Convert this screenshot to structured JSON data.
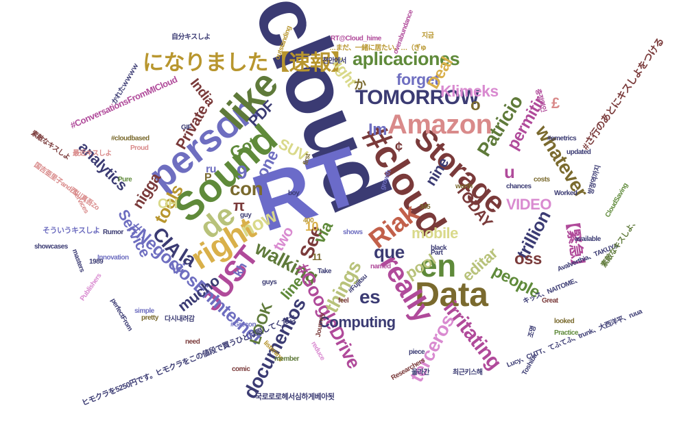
{
  "words": [
    {
      "text": "cloud",
      "color": "#3b3b73"
    },
    {
      "text": "RT",
      "color": "#6b6bc9"
    },
    {
      "text": "person",
      "color": "#6e6ec0"
    },
    {
      "text": "like",
      "color": "#5f7a3a"
    },
    {
      "text": "Sound",
      "color": "#5f8a3a"
    },
    {
      "text": "#cloud",
      "color": "#7a3a3a"
    },
    {
      "text": "Storage",
      "color": "#7a3a3a"
    },
    {
      "text": "Amazon",
      "color": "#d98a8a"
    },
    {
      "text": "TOMORROW",
      "color": "#3b3b73"
    },
    {
      "text": "になりました【速報】",
      "color": "#b8962e"
    },
    {
      "text": "aplicaciones",
      "color": "#5f8a3a"
    },
    {
      "text": "Data",
      "color": "#7a6a2e"
    },
    {
      "text": "en",
      "color": "#5f8a3a"
    },
    {
      "text": "really",
      "color": "#b04a9a"
    },
    {
      "text": "right",
      "color": "#d9b04a"
    },
    {
      "text": "de",
      "color": "#b8c27a"
    },
    {
      "text": "Riak",
      "color": "#c2604a"
    },
    {
      "text": "JUST",
      "color": "#b04a9a"
    },
    {
      "text": "walking",
      "color": "#5f7a3a"
    },
    {
      "text": "now",
      "color": "#d9d98a"
    },
    {
      "text": "irritating",
      "color": "#b04a9a"
    },
    {
      "text": "#GoogleDrive",
      "color": "#b04a9a"
    },
    {
      "text": "documentos",
      "color": "#3b3b73"
    },
    {
      "text": "terceros",
      "color": "#d98ad0"
    },
    {
      "text": "Computing",
      "color": "#3b3b73"
    },
    {
      "text": "#NegociosEnInternet",
      "color": "#6e6ec0"
    },
    {
      "text": "mobile",
      "color": "#d9d98a"
    },
    {
      "text": "VIDEO",
      "color": "#d98ad0"
    },
    {
      "text": "whatever",
      "color": "#7a6a2e"
    },
    {
      "text": "Patricio",
      "color": "#5f7a3a"
    },
    {
      "text": "Klimeks",
      "color": "#d98ad0"
    },
    {
      "text": "forget",
      "color": "#6e6ec0"
    },
    {
      "text": "Deal",
      "color": "#d9b04a"
    },
    {
      "text": "permitir",
      "color": "#b04a9a"
    },
    {
      "text": "trillion",
      "color": "#3b3b73"
    },
    {
      "text": "oss",
      "color": "#7a3a3a"
    },
    {
      "text": "【緊急】",
      "color": "#b04a9a"
    },
    {
      "text": "things",
      "color": "#b8c27a"
    },
    {
      "text": "See",
      "color": "#7a3a3a"
    },
    {
      "text": "via",
      "color": "#5f8a3a"
    },
    {
      "text": "people",
      "color": "#5f8a3a"
    },
    {
      "text": "editar",
      "color": "#b8c27a"
    },
    {
      "text": "pool",
      "color": "#b8c27a"
    },
    {
      "text": "que",
      "color": "#3b3b73"
    },
    {
      "text": "mucho",
      "color": "#3b3b73"
    },
    {
      "text": "line",
      "color": "#5f8a3a"
    },
    {
      "text": "Service",
      "color": "#6e6ec0"
    },
    {
      "text": "tools",
      "color": "#b8962e"
    },
    {
      "text": "CIA",
      "color": "#3b3b73"
    },
    {
      "text": "la",
      "color": "#3b3b73"
    },
    {
      "text": "le",
      "color": "#6e6ec0"
    },
    {
      "text": "LOOK",
      "color": "#5f7a3a"
    },
    {
      "text": "Private",
      "color": "#7a3a3a"
    },
    {
      "text": "analytics",
      "color": "#3b3b73"
    },
    {
      "text": "nigga",
      "color": "#7a3a3a"
    },
    {
      "text": "PDF",
      "color": "#3b3b73"
    },
    {
      "text": "Got",
      "color": "#5f8a3a"
    },
    {
      "text": "SUV",
      "color": "#d9d98a"
    },
    {
      "text": "con",
      "color": "#7a6a2e"
    },
    {
      "text": "one",
      "color": "#6e6ec0"
    },
    {
      "text": "two",
      "color": "#d98ad0"
    },
    {
      "text": "nine",
      "color": "#3b3b73"
    },
    {
      "text": "TODAY",
      "color": "#7a3a3a"
    },
    {
      "text": "India",
      "color": "#7a3a3a"
    },
    {
      "text": "light",
      "color": "#d9d98a"
    },
    {
      "text": "Im",
      "color": "#6e6ec0"
    },
    {
      "text": "OH",
      "color": "#d9d98a"
    },
    {
      "text": "es",
      "color": "#3b3b73"
    },
    {
      "text": "kh",
      "color": "#6e6ec0"
    },
    {
      "text": "#ConversationsFromMICloud",
      "color": "#b04a9a"
    },
    {
      "text": "#さ行のあとにキスしよをつける",
      "color": "#7a3a3a"
    },
    {
      "text": "RT@Cloud_hime",
      "color": "#b04a9a"
    },
    {
      "text": "…まだ、一緒に居たい。…（ぎゅ",
      "color": "#b8962e"
    },
    {
      "text": "ヒモクラを5250円です。ヒモクラをこの値段で買うひとは眼してくださ",
      "color": "#3b3b73"
    },
    {
      "text": "Lucy、CUTT、てふてふ、trunk、大西洋平、ruua",
      "color": "#3b3b73"
    },
    {
      "text": "Avalverthia、TAKUYA",
      "color": "#3b3b73"
    },
    {
      "text": "キッス、NAITOME、",
      "color": "#3b3b73"
    },
    {
      "text": "素敵なキスしよ、",
      "color": "#5f7a3a"
    },
    {
      "text": "국로로로헤서심하게베아됫",
      "color": "#3b3b73"
    },
    {
      "text": "そういうキスしよ",
      "color": "#6e6ec0"
    },
    {
      "text": "国吉亜里子and西川真吾Zo",
      "color": "#d98a8a"
    },
    {
      "text": "自分キスしよ",
      "color": "#3b3b73"
    },
    {
      "text": "#emetrics",
      "color": "#3b3b73"
    },
    {
      "text": "#cloudbased",
      "color": "#7a6a2e"
    },
    {
      "text": "#Fujitsu",
      "color": "#3b3b73"
    },
    {
      "text": "#Grecon",
      "color": "#6e6ec0"
    },
    {
      "text": "Toshiba",
      "color": "#3b3b73"
    },
    {
      "text": "Researchers",
      "color": "#7a3a3a"
    },
    {
      "text": "showcases",
      "color": "#3b3b73"
    },
    {
      "text": "perfectFrom",
      "color": "#3b3b73"
    },
    {
      "text": "outstanding",
      "color": "#b8962e"
    },
    {
      "text": "overabundance",
      "color": "#b04a9a"
    },
    {
      "text": "Practice",
      "color": "#5f8a3a"
    },
    {
      "text": "Innovation",
      "color": "#6e6ec0"
    },
    {
      "text": "masters",
      "color": "#3b3b73"
    },
    {
      "text": "Publishers",
      "color": "#d98ad0"
    },
    {
      "text": "comic",
      "color": "#7a3a3a"
    },
    {
      "text": "worth",
      "color": "#7a6a2e"
    },
    {
      "text": "Worked",
      "color": "#3b3b73"
    },
    {
      "text": "updated",
      "color": "#3b3b73"
    },
    {
      "text": "chances",
      "color": "#3b3b73"
    },
    {
      "text": "costs",
      "color": "#7a6a2e"
    },
    {
      "text": "available",
      "color": "#3b3b73"
    },
    {
      "text": "CloudSaving",
      "color": "#5f8a3a"
    },
    {
      "text": "Rumor",
      "color": "#3b3b73"
    },
    {
      "text": "Proud",
      "color": "#d98a8a"
    },
    {
      "text": "Pure",
      "color": "#5f8a3a"
    },
    {
      "text": "GIF",
      "color": "#3b3b73"
    },
    {
      "text": "Services",
      "color": "#d98a8a"
    },
    {
      "text": "Journey",
      "color": "#7a3a3a"
    },
    {
      "text": "listening",
      "color": "#b8962e"
    },
    {
      "text": "member",
      "color": "#5f7a3a"
    },
    {
      "text": "reduce",
      "color": "#d98ad0"
    },
    {
      "text": "piece",
      "color": "#3b3b73"
    },
    {
      "text": "looked",
      "color": "#7a6a2e"
    },
    {
      "text": "Great",
      "color": "#7a3a3a"
    },
    {
      "text": "Part",
      "color": "#3b3b73"
    },
    {
      "text": "black",
      "color": "#3b3b73"
    },
    {
      "text": "named",
      "color": "#b04a9a"
    },
    {
      "text": "shows",
      "color": "#6e6ec0"
    },
    {
      "text": "growth",
      "color": "#6e6ec0"
    },
    {
      "text": "Take",
      "color": "#3b3b73"
    },
    {
      "text": "guys",
      "color": "#3b3b73"
    },
    {
      "text": "simple",
      "color": "#6e6ec0"
    },
    {
      "text": "pretty",
      "color": "#7a6a2e"
    },
    {
      "text": "need",
      "color": "#7a3a3a"
    },
    {
      "text": "1989",
      "color": "#3b3b73"
    },
    {
      "text": "feel",
      "color": "#7a3a3a"
    },
    {
      "text": "boy",
      "color": "#3b3b73"
    },
    {
      "text": "first",
      "color": "#7a6a2e"
    },
    {
      "text": "guy",
      "color": "#3b3b73"
    },
    {
      "text": "400",
      "color": "#b8962e"
    },
    {
      "text": "345",
      "color": "#7a6a2e"
    },
    {
      "text": "10",
      "color": "#d9b04a"
    },
    {
      "text": "11",
      "color": "#7a6a2e"
    },
    {
      "text": "9",
      "color": "#6e6ec0"
    },
    {
      "text": "P",
      "color": "#7a6a2e"
    },
    {
      "text": "π",
      "color": "#7a3a3a"
    },
    {
      "text": "£",
      "color": "#d98a8a"
    },
    {
      "text": "o",
      "color": "#7a6a2e"
    },
    {
      "text": "か",
      "color": "#7a6a2e"
    },
    {
      "text": "¢",
      "color": "#7a3a3a"
    },
    {
      "text": "u",
      "color": "#b04a9a"
    },
    {
      "text": "ru",
      "color": "#6e6ec0"
    },
    {
      "text": "최근키스해",
      "color": "#3b3b73"
    },
    {
      "text": "천안에서",
      "color": "#3b3b73"
    },
    {
      "text": "지금",
      "color": "#b8962e"
    },
    {
      "text": "조명",
      "color": "#3b3b73"
    },
    {
      "text": "울라간",
      "color": "#3b3b73"
    },
    {
      "text": "다시내려감",
      "color": "#3b3b73"
    },
    {
      "text": "방정역까지",
      "color": "#3b3b73"
    },
    {
      "text": "충정역인",
      "color": "#b04a9a"
    },
    {
      "text": "かれたｗｗｗｗ",
      "color": "#3b3b73"
    },
    {
      "text": "最近キスしよ",
      "color": "#d98a8a"
    },
    {
      "text": "素敵なキスしよ",
      "color": "#7a3a3a"
    }
  ]
}
